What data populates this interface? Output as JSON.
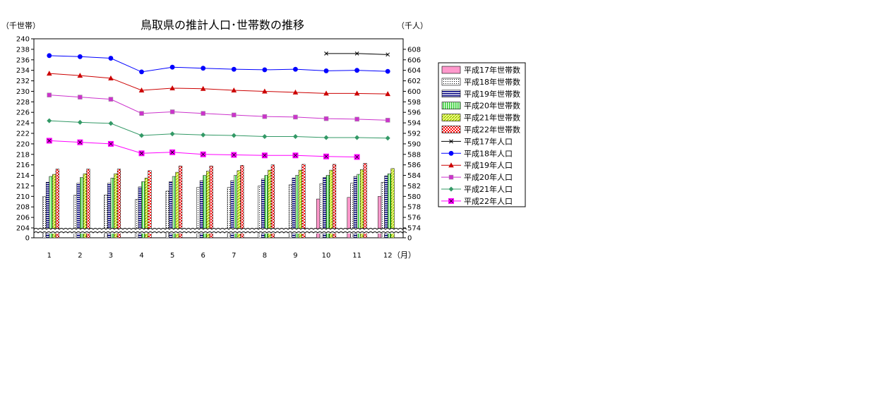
{
  "chart_data": {
    "type": "bar",
    "title": "鳥取県の推計人口･世帯数の推移",
    "left_axis_unit": "（千世帯）",
    "right_axis_unit": "（千人）",
    "x_unit": "（月）",
    "categories": [
      "1",
      "2",
      "3",
      "4",
      "5",
      "6",
      "7",
      "8",
      "9",
      "10",
      "11",
      "12"
    ],
    "left_ticks": [
      "0",
      "204",
      "206",
      "208",
      "210",
      "212",
      "214",
      "216",
      "218",
      "220",
      "222",
      "224",
      "226",
      "228",
      "230",
      "232",
      "234",
      "236",
      "238",
      "240"
    ],
    "right_ticks": [
      "0",
      "574",
      "576",
      "578",
      "580",
      "582",
      "584",
      "586",
      "588",
      "590",
      "592",
      "594",
      "596",
      "598",
      "600",
      "602",
      "604",
      "606",
      "608"
    ],
    "left_axis": {
      "break_from": 0,
      "break_to": 204,
      "max": 240
    },
    "right_axis": {
      "break_from": 0,
      "break_to": 574,
      "max": 608
    },
    "bar_series": [
      {
        "name": "平成17年世帯数",
        "color": "#ff99cc",
        "pattern": "solid",
        "values": [
          null,
          null,
          null,
          null,
          null,
          null,
          null,
          null,
          null,
          209.5,
          209.8,
          210.0
        ]
      },
      {
        "name": "平成18年世帯数",
        "color": "#ffffff",
        "pattern": "dots",
        "values": [
          210.0,
          210.2,
          210.3,
          209.4,
          211.0,
          211.7,
          211.7,
          212.0,
          212.2,
          212.4,
          212.5,
          212.7
        ]
      },
      {
        "name": "平成19年世帯数",
        "color": "#000080",
        "pattern": "hstripe",
        "values": [
          212.7,
          212.5,
          212.5,
          211.8,
          212.8,
          213.0,
          213.0,
          213.3,
          213.5,
          213.6,
          213.8,
          213.9
        ]
      },
      {
        "name": "平成20年世帯数",
        "color": "#33cc33",
        "pattern": "vstripe",
        "values": [
          213.8,
          213.6,
          213.5,
          212.8,
          213.8,
          214.0,
          214.0,
          214.0,
          214.0,
          214.0,
          214.2,
          214.3
        ]
      },
      {
        "name": "平成21年世帯数",
        "color": "#99cc00",
        "pattern": "diag",
        "values": [
          214.2,
          214.3,
          214.3,
          213.5,
          214.6,
          214.8,
          214.9,
          215.0,
          215.0,
          215.0,
          215.1,
          215.3
        ]
      },
      {
        "name": "平成22年世帯数",
        "color": "#ff0000",
        "pattern": "check",
        "values": [
          215.2,
          215.2,
          215.2,
          214.9,
          215.8,
          215.8,
          215.9,
          216.0,
          216.1,
          216.1,
          216.3,
          null
        ]
      }
    ],
    "line_series": [
      {
        "name": "平成17年人口",
        "color": "#000000",
        "marker": "x",
        "values": [
          null,
          null,
          null,
          null,
          null,
          null,
          null,
          null,
          null,
          607.2,
          607.2,
          607.0
        ]
      },
      {
        "name": "平成18年人口",
        "color": "#0000ff",
        "marker": "circle",
        "values": [
          606.8,
          606.6,
          606.3,
          603.7,
          604.6,
          604.4,
          604.2,
          604.1,
          604.2,
          603.9,
          604.0,
          603.8
        ]
      },
      {
        "name": "平成19年人口",
        "color": "#cc0000",
        "marker": "triangle",
        "values": [
          603.4,
          603.0,
          602.5,
          600.2,
          600.6,
          600.5,
          600.2,
          600.0,
          599.8,
          599.6,
          599.6,
          599.5
        ]
      },
      {
        "name": "平成20年人口",
        "color": "#cc33cc",
        "marker": "square",
        "values": [
          599.3,
          598.9,
          598.5,
          595.8,
          596.1,
          595.8,
          595.5,
          595.2,
          595.1,
          594.8,
          594.7,
          594.5
        ]
      },
      {
        "name": "平成21年人口",
        "color": "#339966",
        "marker": "diamond",
        "values": [
          594.4,
          594.1,
          593.9,
          591.6,
          591.9,
          591.7,
          591.6,
          591.4,
          591.4,
          591.2,
          591.2,
          591.1
        ]
      },
      {
        "name": "平成22年人口",
        "color": "#ff00ff",
        "marker": "xsquare",
        "values": [
          590.6,
          590.3,
          590.0,
          588.2,
          588.4,
          588.0,
          587.9,
          587.8,
          587.8,
          587.6,
          587.5,
          null
        ]
      }
    ]
  },
  "legend": {
    "items": [
      {
        "label": "平成17年世帯数",
        "type": "bar",
        "color": "#ff99cc",
        "pattern": "solid"
      },
      {
        "label": "平成18年世帯数",
        "type": "bar",
        "color": "#ffffff",
        "pattern": "dots"
      },
      {
        "label": "平成19年世帯数",
        "type": "bar",
        "color": "#000080",
        "pattern": "hstripe"
      },
      {
        "label": "平成20年世帯数",
        "type": "bar",
        "color": "#33cc33",
        "pattern": "vstripe"
      },
      {
        "label": "平成21年世帯数",
        "type": "bar",
        "color": "#99cc00",
        "pattern": "diag"
      },
      {
        "label": "平成22年世帯数",
        "type": "bar",
        "color": "#ff0000",
        "pattern": "check"
      },
      {
        "label": "平成17年人口",
        "type": "line",
        "color": "#000000",
        "marker": "x"
      },
      {
        "label": "平成18年人口",
        "type": "line",
        "color": "#0000ff",
        "marker": "circle"
      },
      {
        "label": "平成19年人口",
        "type": "line",
        "color": "#cc0000",
        "marker": "triangle"
      },
      {
        "label": "平成20年人口",
        "type": "line",
        "color": "#cc33cc",
        "marker": "square"
      },
      {
        "label": "平成21年人口",
        "type": "line",
        "color": "#339966",
        "marker": "diamond"
      },
      {
        "label": "平成22年人口",
        "type": "line",
        "color": "#ff00ff",
        "marker": "xsquare"
      }
    ]
  }
}
